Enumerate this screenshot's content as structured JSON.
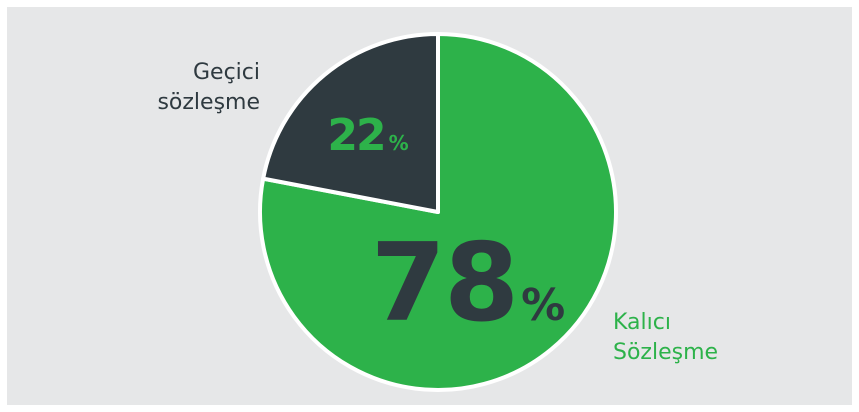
{
  "chart_data": {
    "type": "pie",
    "slices": [
      {
        "key": "kalici",
        "label_lines": [
          "Kalıcı",
          "Sözleşme"
        ],
        "value": 78,
        "value_text": "78",
        "unit": "%",
        "color": "#2db24a",
        "value_color": "#2f3a40"
      },
      {
        "key": "gecici",
        "label_lines": [
          "Geçici",
          "sözleşme"
        ],
        "value": 22,
        "value_text": "22",
        "unit": "%",
        "color": "#2f3a40",
        "value_color": "#2db24a"
      }
    ],
    "start_angle": "12 o'clock",
    "direction": "clockwise",
    "separator_color": "#ffffff"
  },
  "colors": {
    "background": "#e6e7e8",
    "frame": "#ffffff",
    "green": "#2db24a",
    "dark": "#2f3a40"
  }
}
